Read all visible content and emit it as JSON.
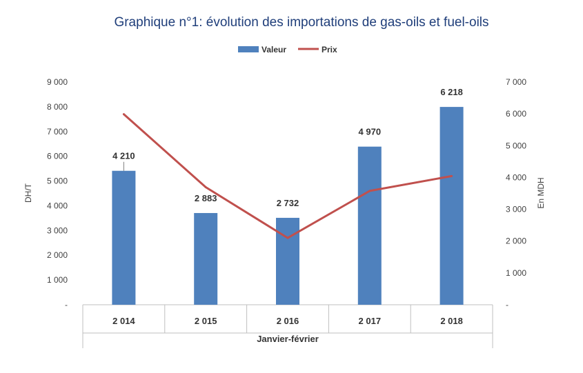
{
  "chart_data": {
    "type": "bar",
    "title": "Graphique n°1: évolution des importations de gas-oils et fuel-oils",
    "categories": [
      "2 014",
      "2 015",
      "2 016",
      "2 017",
      "2 018"
    ],
    "series": [
      {
        "name": "Valeur",
        "kind": "bar",
        "axis": "right",
        "values": [
          4210,
          2883,
          2732,
          4970,
          6218
        ],
        "labels": [
          "4 210",
          "2 883",
          "2 732",
          "4 970",
          "6 218"
        ],
        "color": "#4f81bd"
      },
      {
        "name": "Prix",
        "kind": "line",
        "axis": "left",
        "values": [
          7700,
          4750,
          2700,
          4600,
          5200
        ],
        "color": "#c0504d"
      }
    ],
    "xlabel": "Janvier-février",
    "ylabel_left": "DH/T",
    "ylabel_right": "En MDH",
    "ylim_left": [
      0,
      9000
    ],
    "ylim_right": [
      0,
      7000
    ],
    "yticks_left": [
      "-",
      "1 000",
      "2 000",
      "3 000",
      "4 000",
      "5 000",
      "6 000",
      "7 000",
      "8 000",
      "9 000"
    ],
    "yticks_right": [
      "-",
      "1 000",
      "2 000",
      "3 000",
      "4 000",
      "5 000",
      "6 000",
      "7 000"
    ],
    "legend_position": "top-center",
    "grid": false
  }
}
